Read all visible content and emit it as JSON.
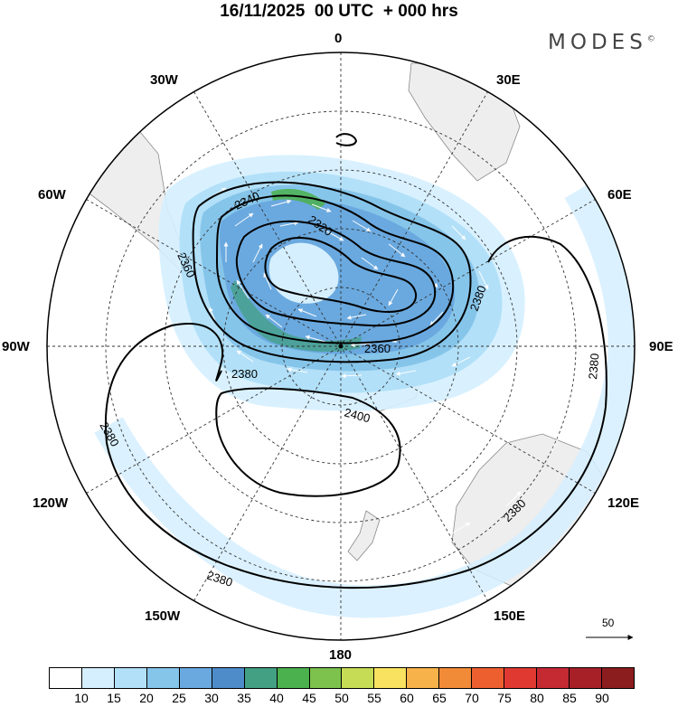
{
  "title": "16/11/2025  00 UTC  + 000 hrs",
  "brand": {
    "name": "MODES",
    "mark": "©"
  },
  "longitude_labels": [
    "0",
    "30E",
    "60E",
    "90E",
    "120E",
    "150E",
    "180",
    "150W",
    "120W",
    "90W",
    "60W",
    "30W"
  ],
  "contour_labels": [
    "2340",
    "2320",
    "2360",
    "2360",
    "2380",
    "2380",
    "2380",
    "2380",
    "2380",
    "2400"
  ],
  "vector_scale": {
    "value": "50"
  },
  "colorbar": {
    "ticks": [
      "10",
      "15",
      "20",
      "25",
      "30",
      "35",
      "40",
      "45",
      "50",
      "55",
      "60",
      "65",
      "70",
      "75",
      "80",
      "85",
      "90"
    ],
    "colors": [
      "#ffffff",
      "#d5efff",
      "#b2e0f8",
      "#86c5ea",
      "#6aa9df",
      "#4e8cc9",
      "#43a083",
      "#4bb04e",
      "#7cc24d",
      "#c6dc55",
      "#f8e260",
      "#f7b24a",
      "#f28b37",
      "#ee5f2f",
      "#df3932",
      "#c52a33",
      "#a72028",
      "#8c1d1e"
    ]
  }
}
